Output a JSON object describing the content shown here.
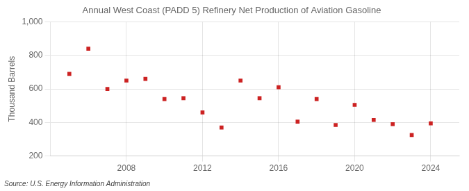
{
  "chart_data": {
    "type": "scatter",
    "title": "Annual West Coast (PADD 5) Refinery Net Production of Aviation Gasoline",
    "ylabel": "Thousand Barrels",
    "source": "Source: U.S. Energy Information Administration",
    "x": [
      2005,
      2006,
      2007,
      2008,
      2009,
      2010,
      2011,
      2012,
      2013,
      2014,
      2015,
      2016,
      2017,
      2018,
      2019,
      2020,
      2021,
      2022,
      2023,
      2024
    ],
    "values": [
      690,
      840,
      600,
      650,
      660,
      540,
      545,
      460,
      370,
      650,
      545,
      610,
      405,
      540,
      385,
      505,
      415,
      390,
      325,
      395
    ],
    "xlim": [
      2004,
      2025.5
    ],
    "xticks": [
      2008,
      2012,
      2016,
      2020,
      2024
    ],
    "ylim": [
      200,
      1000
    ],
    "yticks": [
      200,
      400,
      600,
      800,
      {
        "value": 1000,
        "label": "1,000"
      }
    ],
    "color": "#cc2222",
    "marker": "square",
    "grid": true
  }
}
